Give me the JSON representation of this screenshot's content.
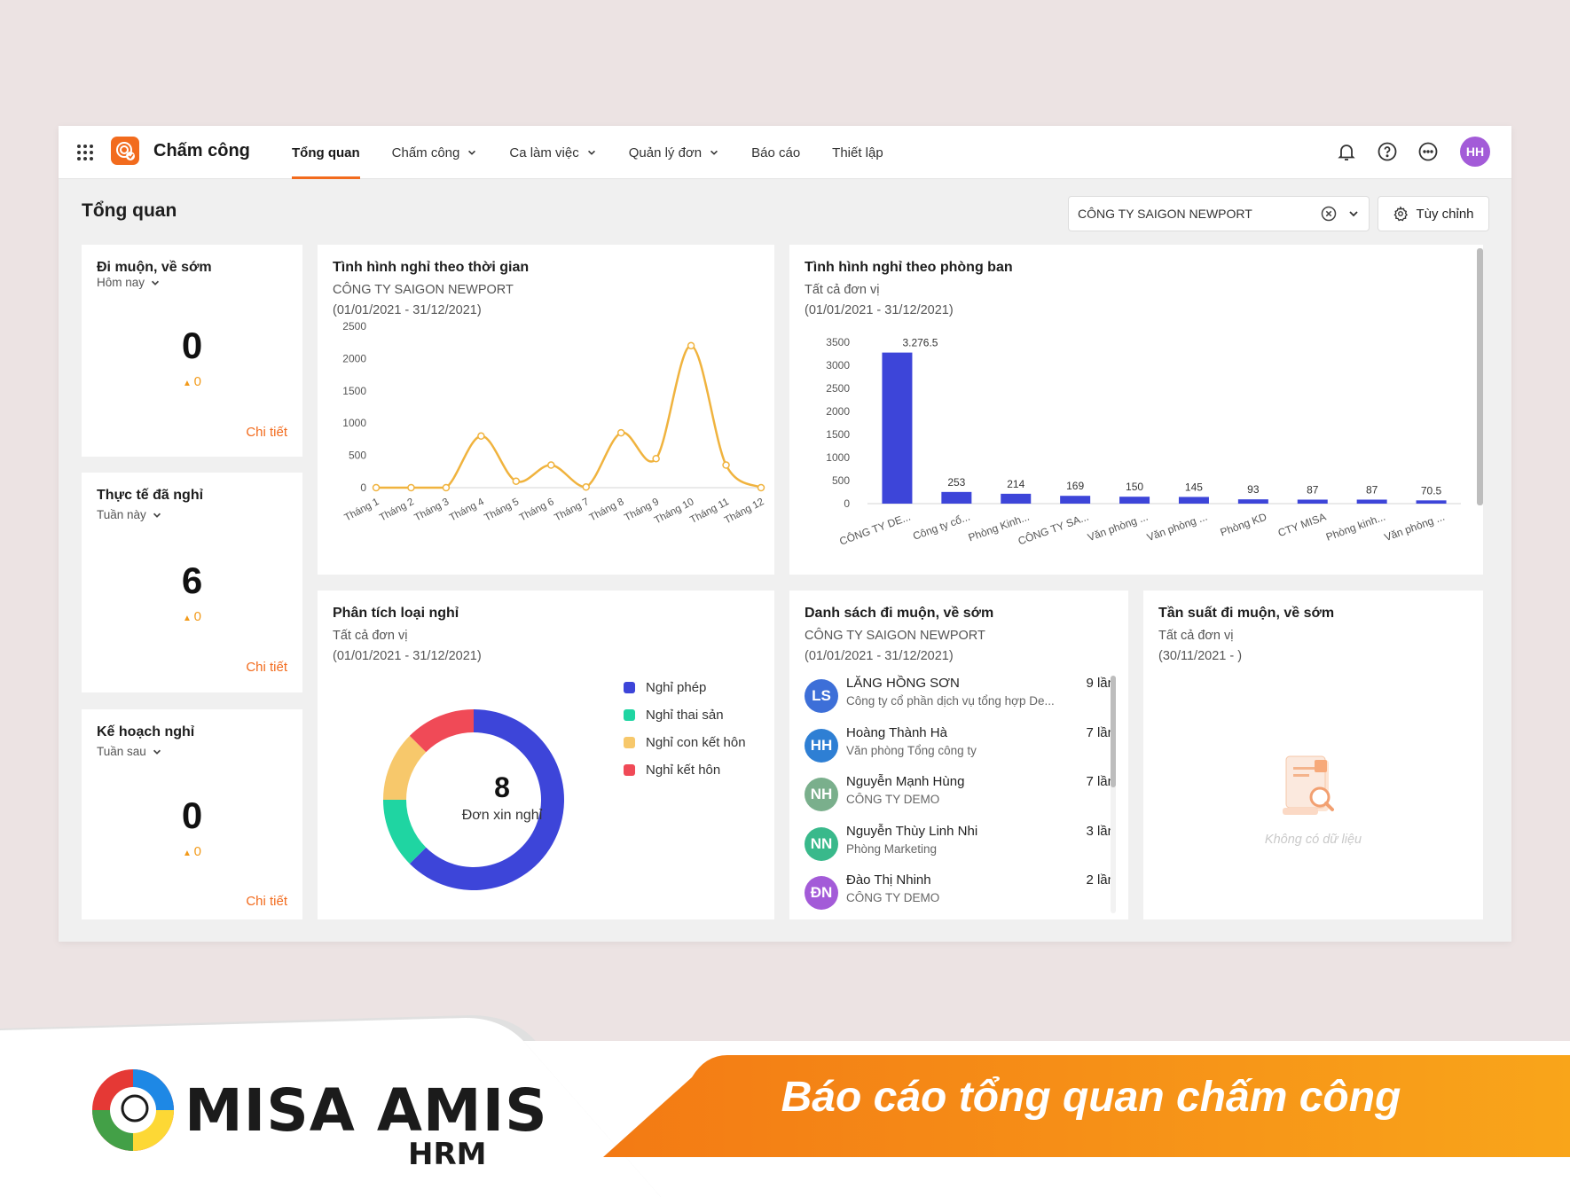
{
  "topbar": {
    "app_name": "Chấm công",
    "nav": [
      {
        "label": "Tổng quan",
        "active": true,
        "dropdown": false
      },
      {
        "label": "Chấm công",
        "active": false,
        "dropdown": true
      },
      {
        "label": "Ca làm việc",
        "active": false,
        "dropdown": true
      },
      {
        "label": "Quản lý đơn",
        "active": false,
        "dropdown": true
      },
      {
        "label": "Báo cáo",
        "active": false,
        "dropdown": false
      },
      {
        "label": "Thiết lập",
        "active": false,
        "dropdown": false
      }
    ],
    "user_initials": "HH",
    "icons": [
      "apps-grid-icon",
      "bell-icon",
      "help-icon",
      "more-icon"
    ],
    "accent": "#f26b1d"
  },
  "page": {
    "title": "Tổng quan",
    "company_select": "CÔNG TY SAIGON NEWPORT",
    "customize_label": "Tùy chỉnh"
  },
  "stat_cards": [
    {
      "title": "Đi muộn, về sớm",
      "period": "Hôm nay",
      "value": "0",
      "delta": "0",
      "detail": "Chi tiết"
    },
    {
      "title": "Thực tế đã nghỉ",
      "period": "Tuần này",
      "value": "6",
      "delta": "0",
      "detail": "Chi tiết"
    },
    {
      "title": "Kế hoạch nghỉ",
      "period": "Tuần sau",
      "value": "0",
      "delta": "0",
      "detail": "Chi tiết"
    }
  ],
  "time_card": {
    "title": "Tình hình nghỉ theo thời gian",
    "subtitle": "CÔNG TY SAIGON NEWPORT",
    "range": "(01/01/2021 - 31/12/2021)"
  },
  "dept_card": {
    "title": "Tình hình nghỉ theo phòng ban",
    "subtitle": "Tất cả đơn vị",
    "range": "(01/01/2021 - 31/12/2021)"
  },
  "type_card": {
    "title": "Phân tích loại nghỉ",
    "subtitle": "Tất cả đơn vị",
    "range": "(01/01/2021 - 31/12/2021)",
    "center_value": "8",
    "center_label": "Đơn xin nghỉ"
  },
  "late_card": {
    "title": "Danh sách đi muộn, về sớm",
    "subtitle": "CÔNG TY SAIGON NEWPORT",
    "range": "(01/01/2021 - 31/12/2021)",
    "rows": [
      {
        "initials": "LS",
        "color": "#3d6fd8",
        "name": "LĂNG HỒNG SƠN",
        "org": "Công ty cổ phần dịch vụ tổng hợp De...",
        "count": "9 lần"
      },
      {
        "initials": "HH",
        "color": "#2e7fd4",
        "name": "Hoàng Thành Hà",
        "org": "Văn phòng Tổng công ty",
        "count": "7 lần"
      },
      {
        "initials": "NH",
        "color": "#7aaf8c",
        "name": "Nguyễn Mạnh Hùng",
        "org": "CÔNG TY DEMO",
        "count": "7 lần"
      },
      {
        "initials": "NN",
        "color": "#39b98b",
        "name": "Nguyễn Thùy Linh Nhi",
        "org": "Phòng Marketing",
        "count": "3 lần"
      },
      {
        "initials": "ĐN",
        "color": "#a35bd8",
        "name": "Đào Thị Nhinh",
        "org": "CÔNG TY DEMO",
        "count": "2 lần"
      }
    ]
  },
  "freq_card": {
    "title": "Tần suất đi muộn, về sớm",
    "subtitle": "Tất cả đơn vị",
    "range": "(30/11/2021 - )",
    "empty_text": "Không có dữ liệu"
  },
  "branding": {
    "brand_name": "MISA AMIS",
    "brand_sub": "HRM",
    "banner_text": "Báo cáo tổng quan chấm công"
  },
  "chart_data": [
    {
      "type": "line",
      "categories": [
        "Tháng 1",
        "Tháng 2",
        "Tháng 3",
        "Tháng 4",
        "Tháng 5",
        "Tháng 6",
        "Tháng 7",
        "Tháng 8",
        "Tháng 9",
        "Tháng 10",
        "Tháng 11",
        "Tháng 12"
      ],
      "values": [
        0,
        0,
        0,
        800,
        100,
        350,
        10,
        850,
        450,
        2200,
        350,
        0
      ],
      "ylim": [
        0,
        2500
      ],
      "yticks": [
        0,
        500,
        1000,
        1500,
        2000,
        2500
      ],
      "color": "#f0b33e",
      "grid": false
    },
    {
      "type": "bar",
      "categories": [
        "CÔNG TY DE...",
        "Công ty cổ...",
        "Phòng Kinh...",
        "CÔNG TY SA...",
        "Văn phòng ...",
        "Văn phòng ...",
        "Phòng KD",
        "CTY MISA",
        "Phòng kinh...",
        "Văn phòng ..."
      ],
      "values": [
        3276.5,
        253,
        214,
        169,
        150,
        145,
        93,
        87,
        87,
        70.5
      ],
      "data_labels": [
        "3.276.5",
        "253",
        "214",
        "169",
        "150",
        "145",
        "93",
        "87",
        "87",
        "70.5"
      ],
      "ylim": [
        0,
        3500
      ],
      "yticks": [
        0,
        500,
        1000,
        1500,
        2000,
        2500,
        3000,
        3500
      ],
      "color": "#3d45d9",
      "grid": false
    },
    {
      "type": "pie",
      "donut": true,
      "categories": [
        "Nghỉ phép",
        "Nghỉ thai sản",
        "Nghỉ con kết hôn",
        "Nghỉ kết hôn"
      ],
      "values": [
        5,
        1,
        1,
        1
      ],
      "colors": [
        "#3d45d9",
        "#1fd5a2",
        "#f7c86b",
        "#f04a57"
      ]
    }
  ]
}
